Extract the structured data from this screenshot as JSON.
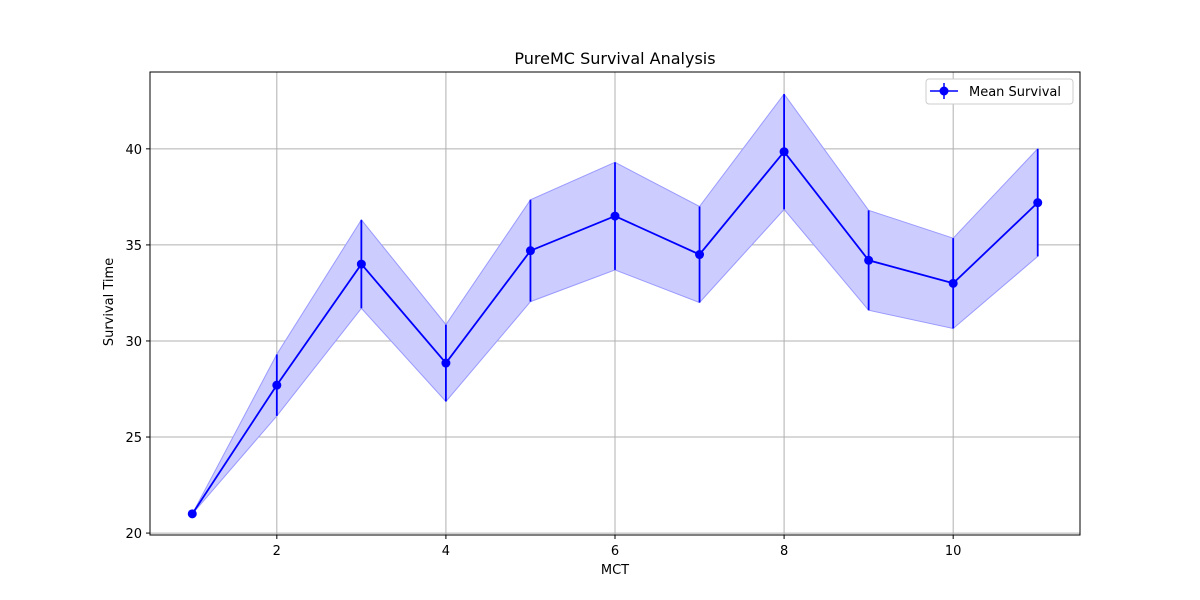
{
  "chart_data": {
    "type": "line",
    "title": "PureMC Survival Analysis",
    "xlabel": "MCT",
    "ylabel": "Survival Time",
    "xlim": [
      0.5,
      11.5
    ],
    "ylim": [
      19.9,
      44.0
    ],
    "xticks": [
      2,
      4,
      6,
      8,
      10
    ],
    "yticks": [
      20,
      25,
      30,
      35,
      40
    ],
    "grid": true,
    "legend_position": "top-right",
    "series": [
      {
        "name": "Mean Survival",
        "color": "#0000ff",
        "band_color": "#ccccff",
        "marker": "circle",
        "x": [
          1,
          2,
          3,
          4,
          5,
          6,
          7,
          8,
          9,
          10,
          11
        ],
        "y": [
          21.0,
          27.7,
          34.0,
          28.85,
          34.7,
          36.5,
          34.5,
          39.85,
          34.2,
          33.0,
          37.2
        ],
        "error": [
          0.0,
          1.6,
          2.3,
          2.0,
          2.65,
          2.8,
          2.5,
          3.0,
          2.6,
          2.35,
          2.8
        ]
      }
    ]
  }
}
